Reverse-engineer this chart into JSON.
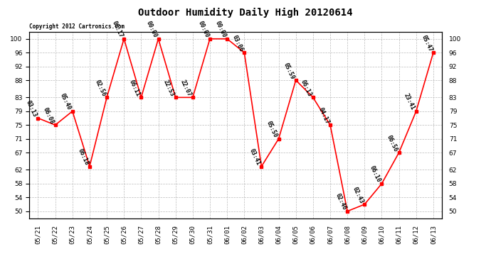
{
  "title": "Outdoor Humidity Daily High 20120614",
  "copyright_text": "Copyright 2012 Cartronics.com",
  "dates": [
    "05/21",
    "05/22",
    "05/23",
    "05/24",
    "05/25",
    "05/26",
    "05/27",
    "05/28",
    "05/29",
    "05/30",
    "05/31",
    "06/01",
    "06/02",
    "06/03",
    "06/04",
    "06/05",
    "06/06",
    "06/07",
    "06/08",
    "06/09",
    "06/10",
    "06/11",
    "06/12",
    "06/13"
  ],
  "values": [
    77,
    75,
    79,
    63,
    83,
    100,
    83,
    100,
    83,
    83,
    100,
    100,
    96,
    63,
    71,
    88,
    83,
    75,
    50,
    52,
    58,
    67,
    79,
    96
  ],
  "labels": [
    "03:13",
    "06:08",
    "05:40",
    "06:18",
    "02:56",
    "06:17",
    "06:11",
    "00:00",
    "22:53",
    "22:07",
    "00:00",
    "00:00",
    "03:06",
    "03:41",
    "05:50",
    "05:59",
    "06:13",
    "04:17",
    "02:46",
    "02:43",
    "06:10",
    "06:56",
    "23:41",
    "05:47"
  ],
  "ylim_min": 48,
  "ylim_max": 102,
  "yticks": [
    50,
    54,
    58,
    62,
    67,
    71,
    75,
    79,
    83,
    88,
    92,
    96,
    100
  ],
  "line_color": "red",
  "marker_color": "red",
  "marker_size": 3,
  "line_width": 1.2,
  "background_color": "#ffffff",
  "grid_color": "#bbbbbb",
  "label_fontsize": 6,
  "title_fontsize": 10,
  "tick_fontsize": 6.5,
  "label_rotation": -65,
  "copyright_fontsize": 5.5
}
